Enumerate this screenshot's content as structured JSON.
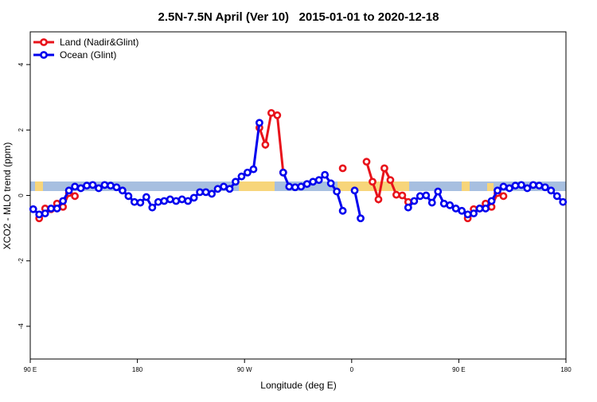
{
  "chart_data": {
    "type": "line",
    "title": "2.5N-7.5N April (Ver 10)   2015-01-01 to 2020-12-18",
    "xlabel": "Longitude (deg E)",
    "ylabel": "XCO2 - MLO trend (ppm)",
    "xlim": [
      90,
      540
    ],
    "ylim": [
      -5,
      5
    ],
    "xticks": [
      {
        "value": 90,
        "label": "90 E"
      },
      180,
      {
        "value": 270,
        "label": "90 W"
      },
      {
        "value": 360,
        "label": "0"
      },
      {
        "value": 450,
        "label": "90 E"
      },
      {
        "value": 540,
        "label": "180"
      }
    ],
    "yticks": [
      -4,
      -2,
      0,
      2,
      4
    ],
    "legend": "topleft",
    "x": [
      92.5,
      97.5,
      102.5,
      107.5,
      112.5,
      117.5,
      122.5,
      127.5,
      132.5,
      137.5,
      142.5,
      147.5,
      152.5,
      157.5,
      162.5,
      167.5,
      172.5,
      177.5,
      182.5,
      187.5,
      192.5,
      197.5,
      202.5,
      207.5,
      212.5,
      217.5,
      222.5,
      227.5,
      232.5,
      237.5,
      242.5,
      247.5,
      252.5,
      257.5,
      262.5,
      267.5,
      272.5,
      277.5,
      282.5,
      287.5,
      292.5,
      297.5,
      302.5,
      307.5,
      312.5,
      317.5,
      322.5,
      327.5,
      332.5,
      337.5,
      342.5,
      347.5,
      352.5,
      357.5,
      362.5,
      367.5,
      372.5,
      377.5,
      382.5,
      387.5,
      392.5,
      397.5,
      402.5,
      407.5,
      412.5,
      417.5,
      422.5,
      427.5,
      432.5,
      437.5,
      442.5,
      447.5,
      452.5,
      457.5,
      462.5,
      467.5,
      472.5,
      477.5,
      482.5,
      487.5,
      492.5,
      497.5,
      502.5,
      507.5,
      512.5,
      517.5,
      522.5,
      527.5,
      532.5,
      537.5
    ],
    "series": [
      {
        "name": "Land (Nadir&Glint)",
        "color": "#e8131b",
        "values": [
          null,
          -0.7,
          -0.4,
          -0.42,
          -0.25,
          -0.35,
          0.07,
          -0.02,
          null,
          null,
          null,
          null,
          null,
          null,
          null,
          null,
          null,
          null,
          null,
          null,
          null,
          null,
          null,
          null,
          null,
          null,
          null,
          null,
          null,
          null,
          null,
          null,
          null,
          null,
          null,
          null,
          null,
          null,
          2.07,
          1.55,
          2.52,
          2.45,
          0.7,
          null,
          null,
          null,
          null,
          null,
          null,
          null,
          null,
          null,
          0.83,
          null,
          null,
          null,
          1.03,
          0.42,
          -0.12,
          0.83,
          0.47,
          0.02,
          0,
          -0.2,
          null,
          null,
          null,
          null,
          null,
          null,
          null,
          null,
          null,
          -0.7,
          -0.42,
          -0.4,
          -0.25,
          -0.35,
          0.07,
          -0.02,
          null,
          null,
          null,
          null,
          null,
          null,
          null,
          null,
          null,
          null
        ]
      },
      {
        "name": "Ocean (Glint)",
        "color": "#0000ee",
        "values": [
          -0.42,
          -0.58,
          -0.55,
          -0.4,
          -0.4,
          -0.17,
          0.15,
          0.27,
          0.22,
          0.3,
          0.32,
          0.22,
          0.32,
          0.3,
          0.25,
          0.15,
          -0.02,
          -0.2,
          -0.22,
          -0.05,
          -0.37,
          -0.2,
          -0.17,
          -0.12,
          -0.17,
          -0.12,
          -0.17,
          -0.07,
          0.1,
          0.1,
          0.05,
          0.2,
          0.27,
          0.2,
          0.42,
          0.58,
          0.7,
          0.8,
          2.22,
          null,
          null,
          null,
          0.7,
          0.27,
          0.25,
          0.27,
          0.35,
          0.42,
          0.47,
          0.63,
          0.37,
          0.12,
          -0.47,
          null,
          0.15,
          -0.7,
          null,
          null,
          null,
          null,
          null,
          null,
          null,
          -0.37,
          -0.17,
          -0.02,
          0,
          -0.22,
          0.12,
          -0.25,
          -0.3,
          -0.4,
          -0.47,
          -0.58,
          -0.55,
          -0.4,
          -0.4,
          -0.17,
          0.15,
          0.27,
          0.22,
          0.3,
          0.32,
          0.22,
          0.32,
          0.3,
          0.25,
          0.15,
          -0.02,
          -0.2
        ]
      }
    ]
  }
}
